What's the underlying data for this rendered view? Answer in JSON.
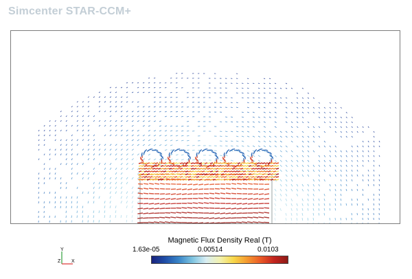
{
  "app": {
    "title": "Simcenter STAR-CCM+"
  },
  "legend": {
    "title": "Magnetic Flux Density Real (T)",
    "min_label": "1.63e-05",
    "mid_label": "0.00514",
    "max_label": "0.0103",
    "colormap": [
      "#1a237e",
      "#1f4fa8",
      "#3a86c8",
      "#7ec4e0",
      "#d9eef3",
      "#f2f2b0",
      "#f7d84a",
      "#f59a30",
      "#ea5a26",
      "#c2241f",
      "#8e1a16"
    ]
  },
  "triad": {
    "y_label": "Y",
    "z_label": "Z",
    "x_label": "X"
  },
  "colors": {
    "arrow_low": "#1f3f8f",
    "arrow_mid": "#f2c744",
    "arrow_high": "#d9412a",
    "frame": "#7c7c7c"
  }
}
